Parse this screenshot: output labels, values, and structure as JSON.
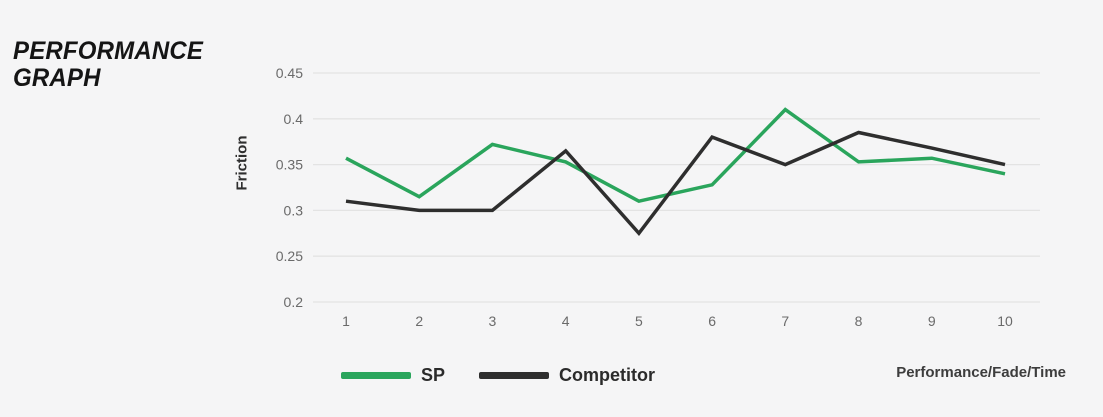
{
  "header": {
    "title_line1": "PERFORMANCE",
    "title_line2": "GRAPH"
  },
  "colors": {
    "background": "#f5f5f6",
    "gridline": "#e3e3e3",
    "tick_text": "#6a6a6a",
    "sp_green": "#2aa55c",
    "competitor_black": "#2e2e2e"
  },
  "chart_data": {
    "type": "line",
    "title": "PERFORMANCE GRAPH",
    "ylabel": "Friction",
    "xlabel": "Performance/Fade/Time",
    "x": [
      1,
      2,
      3,
      4,
      5,
      6,
      7,
      8,
      9,
      10
    ],
    "xtick_labels": [
      "1",
      "2",
      "3",
      "4",
      "5",
      "6",
      "7",
      "8",
      "9",
      "10"
    ],
    "series": [
      {
        "name": "SP",
        "color": "#2aa55c",
        "values": [
          0.357,
          0.315,
          0.372,
          0.353,
          0.31,
          0.328,
          0.41,
          0.353,
          0.357,
          0.34
        ]
      },
      {
        "name": "Competitor",
        "color": "#2e2e2e",
        "values": [
          0.31,
          0.3,
          0.3,
          0.365,
          0.275,
          0.38,
          0.35,
          0.385,
          0.368,
          0.35
        ]
      }
    ],
    "ylim": [
      0.2,
      0.45
    ],
    "yticks": [
      0.2,
      0.25,
      0.3,
      0.35,
      0.4,
      0.45
    ],
    "ytick_labels": [
      "0.2",
      "0.25",
      "0.3",
      "0.35",
      "0.4",
      "0.45"
    ],
    "grid": "horizontal",
    "legend_position": "bottom"
  }
}
